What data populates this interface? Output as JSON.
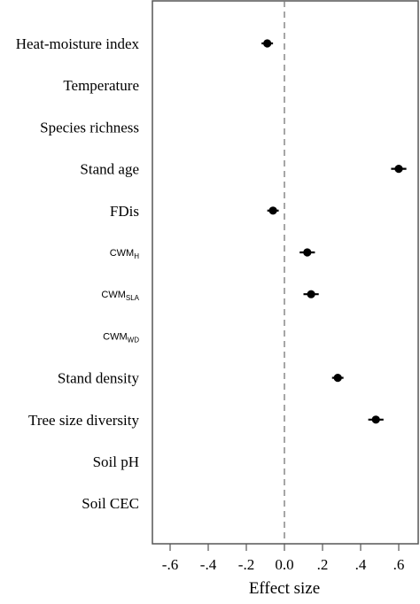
{
  "chart_data": {
    "type": "scatter",
    "subtype": "forest-plot",
    "title": "",
    "xlabel": "Effect size",
    "ylabel": "",
    "xlim": [
      -0.7,
      0.7
    ],
    "x_ticks": [
      -0.6,
      -0.4,
      -0.2,
      0.0,
      0.2,
      0.4,
      0.6
    ],
    "x_tick_labels": [
      "-.6",
      "-.4",
      "-.2",
      "0.0",
      ".2",
      ".4",
      ".6"
    ],
    "reference_line": 0,
    "reference_line_style": "dashed",
    "grid": false,
    "legend": "none",
    "point_color": "#000000",
    "categories": [
      {
        "label": "Heat-moisture index",
        "font": "serif",
        "estimate": -0.09,
        "ci": [
          -0.12,
          -0.06
        ]
      },
      {
        "label": "Temperature",
        "font": "serif",
        "estimate": null,
        "ci": null
      },
      {
        "label": "Species richness",
        "font": "serif",
        "estimate": null,
        "ci": null
      },
      {
        "label": "Stand age",
        "font": "serif",
        "estimate": 0.6,
        "ci": [
          0.56,
          0.64
        ]
      },
      {
        "label": "FDis",
        "font": "serif",
        "estimate": -0.06,
        "ci": [
          -0.09,
          -0.03
        ]
      },
      {
        "label": "CWM",
        "sub": "H",
        "font": "sans",
        "estimate": 0.12,
        "ci": [
          0.08,
          0.16
        ]
      },
      {
        "label": "CWM",
        "sub": "SLA",
        "font": "sans",
        "estimate": 0.14,
        "ci": [
          0.1,
          0.18
        ]
      },
      {
        "label": "CWM",
        "sub": "WD",
        "font": "sans",
        "estimate": null,
        "ci": null
      },
      {
        "label": "Stand density",
        "font": "serif",
        "estimate": 0.28,
        "ci": [
          0.25,
          0.31
        ]
      },
      {
        "label": "Tree size diversity",
        "font": "serif",
        "estimate": 0.48,
        "ci": [
          0.44,
          0.52
        ]
      },
      {
        "label": "Soil pH",
        "font": "serif",
        "estimate": null,
        "ci": null
      },
      {
        "label": "Soil CEC",
        "font": "serif",
        "estimate": null,
        "ci": null
      }
    ]
  }
}
